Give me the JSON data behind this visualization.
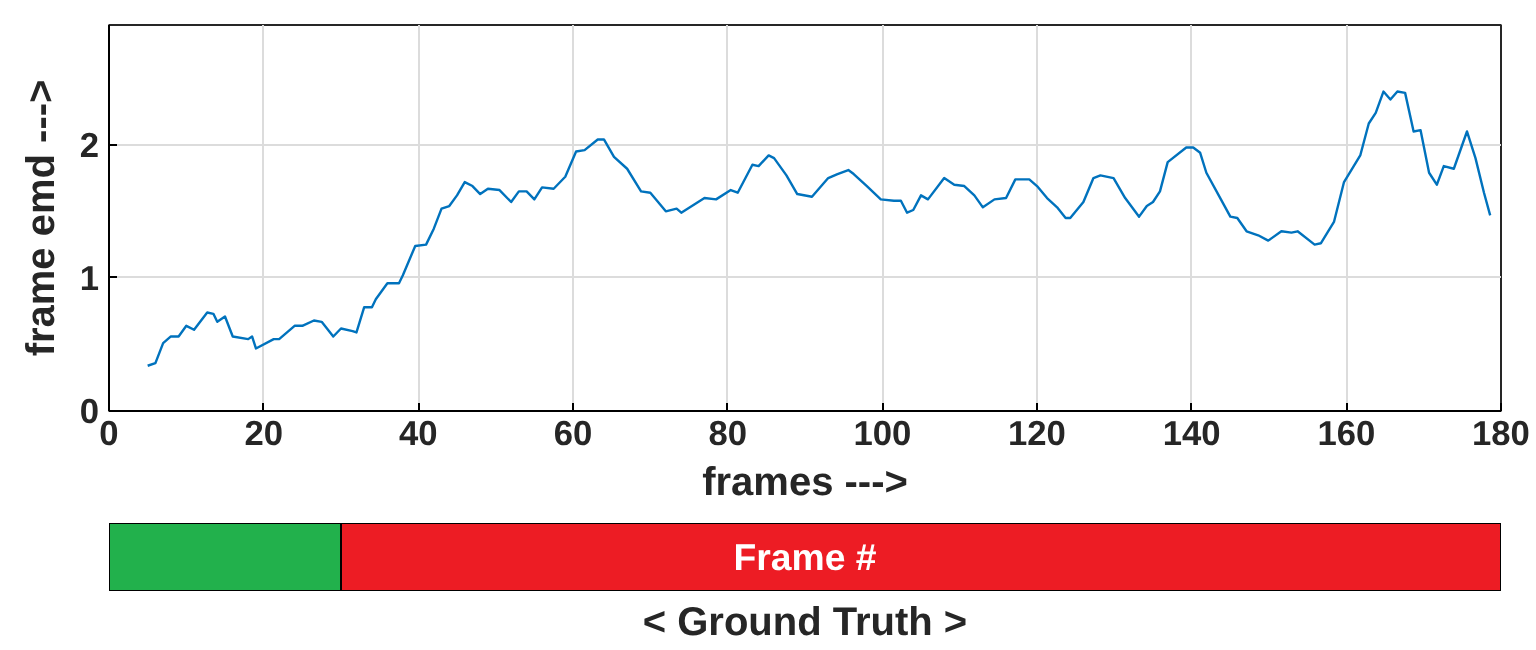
{
  "chart_data": [
    {
      "type": "line",
      "xlabel": "frames --->",
      "ylabel": "frame emd --->",
      "xlim": [
        0,
        180
      ],
      "ylim": [
        0,
        2.9
      ],
      "xticks": [
        0,
        20,
        40,
        60,
        80,
        100,
        120,
        140,
        160,
        180
      ],
      "yticks": [
        0,
        1,
        2
      ],
      "grid": true,
      "marker": "none",
      "line_style": "solid",
      "series": [
        {
          "color": "#0072bd",
          "x": [
            5,
            6,
            7,
            8,
            9,
            10,
            11,
            12.7,
            13.5,
            14,
            15,
            16,
            18,
            18.5,
            19,
            21.3,
            22,
            24,
            25,
            26.5,
            27.5,
            29,
            30,
            31.5,
            32,
            33,
            34,
            34.5,
            36,
            37.5,
            38,
            39.6,
            41,
            42,
            43,
            44,
            45,
            46,
            47,
            48,
            49,
            50.5,
            52,
            53,
            54,
            55,
            56,
            57.5,
            59,
            60.4,
            61.5,
            63.2,
            64,
            65.3,
            67,
            68.8,
            70,
            72,
            73.4,
            74,
            77,
            78.5,
            80.4,
            81.3,
            83.2,
            84,
            85.3,
            86,
            87.6,
            89,
            90.9,
            93,
            94.2,
            95.6,
            96.3,
            98,
            99.8,
            101.5,
            102.4,
            103.2,
            104,
            105,
            105.9,
            108,
            109.3,
            110.6,
            111.9,
            113,
            114.5,
            116,
            117.2,
            119,
            120,
            121.3,
            122.6,
            123.7,
            124.3,
            126,
            127.3,
            128.2,
            129.9,
            131.4,
            133.2,
            134.2,
            135,
            135.9,
            136.9,
            139.3,
            140.2,
            141.1,
            141.9,
            143.5,
            145,
            145.9,
            147.1,
            148.6,
            149.9,
            151.6,
            152.9,
            153.7,
            155.9,
            156.7,
            158.4,
            159.7,
            161.8,
            162.9,
            163.8,
            164.8,
            165.7,
            166.6,
            167.6,
            168.7,
            169.6,
            170.7,
            171.7,
            172.6,
            173.9,
            175.6,
            176.7,
            177.8,
            178.6
          ],
          "values": [
            0.34,
            0.36,
            0.51,
            0.56,
            0.56,
            0.64,
            0.61,
            0.74,
            0.73,
            0.67,
            0.71,
            0.56,
            0.54,
            0.56,
            0.47,
            0.54,
            0.54,
            0.64,
            0.64,
            0.68,
            0.67,
            0.56,
            0.62,
            0.6,
            0.59,
            0.78,
            0.78,
            0.84,
            0.96,
            0.96,
            1.02,
            1.24,
            1.25,
            1.37,
            1.52,
            1.54,
            1.62,
            1.72,
            1.69,
            1.63,
            1.67,
            1.66,
            1.57,
            1.65,
            1.65,
            1.59,
            1.68,
            1.67,
            1.76,
            1.95,
            1.96,
            2.04,
            2.04,
            1.91,
            1.82,
            1.65,
            1.64,
            1.5,
            1.52,
            1.49,
            1.6,
            1.59,
            1.66,
            1.64,
            1.85,
            1.84,
            1.92,
            1.9,
            1.77,
            1.63,
            1.61,
            1.75,
            1.78,
            1.81,
            1.78,
            1.69,
            1.59,
            1.58,
            1.58,
            1.49,
            1.51,
            1.62,
            1.59,
            1.75,
            1.7,
            1.69,
            1.62,
            1.53,
            1.59,
            1.6,
            1.74,
            1.74,
            1.69,
            1.6,
            1.53,
            1.45,
            1.45,
            1.57,
            1.75,
            1.77,
            1.75,
            1.6,
            1.46,
            1.54,
            1.57,
            1.65,
            1.87,
            1.98,
            1.98,
            1.94,
            1.79,
            1.62,
            1.46,
            1.45,
            1.35,
            1.32,
            1.28,
            1.35,
            1.34,
            1.35,
            1.25,
            1.26,
            1.42,
            1.72,
            1.92,
            2.16,
            2.24,
            2.4,
            2.34,
            2.4,
            2.39,
            2.1,
            2.11,
            1.79,
            1.7,
            1.84,
            1.82,
            2.1,
            1.9,
            1.64,
            1.47
          ]
        }
      ]
    },
    {
      "type": "bar",
      "orientation": "horizontal",
      "stacked": true,
      "categories": [
        null
      ],
      "xlim": [
        0,
        180
      ],
      "xlabel": "< Ground Truth >",
      "annotations": [
        "Frame #"
      ],
      "series": [
        {
          "color": "#22b14c",
          "values": [
            30
          ]
        },
        {
          "color": "#ed1c24",
          "values": [
            150
          ]
        }
      ]
    }
  ]
}
